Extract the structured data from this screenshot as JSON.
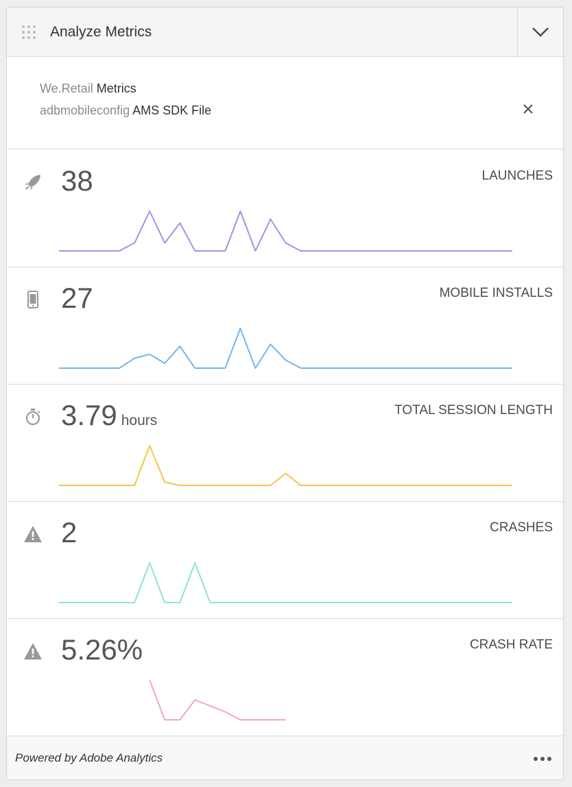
{
  "header": {
    "title": "Analyze Metrics",
    "drag_icon": "grip-dots-icon",
    "collapse_icon": "chevron-down-icon"
  },
  "context": {
    "line1_muted": "We.Retail",
    "line1_strong": "Metrics",
    "line2_muted": "adbmobileconfig",
    "line2_strong": "AMS SDK File",
    "close_icon": "close-icon"
  },
  "metrics": [
    {
      "value": "38",
      "unit": "",
      "label": "LAUNCHES",
      "icon": "rocket-icon",
      "color": "#a98ee8",
      "series": [
        0,
        0,
        0,
        0,
        0,
        0.2,
        1,
        0.2,
        0.7,
        0,
        0,
        0,
        1,
        0,
        0.8,
        0.2,
        0,
        0,
        0,
        0,
        0,
        0,
        0,
        0,
        0,
        0,
        0,
        0,
        0,
        0,
        0
      ]
    },
    {
      "value": "27",
      "unit": "",
      "label": "MOBILE INSTALLS",
      "icon": "phone-icon",
      "color": "#75b4ee",
      "series": [
        0,
        0,
        0,
        0,
        0,
        0.25,
        0.35,
        0.12,
        0.55,
        0,
        0,
        0,
        1,
        0,
        0.6,
        0.2,
        0,
        0,
        0,
        0,
        0,
        0,
        0,
        0,
        0,
        0,
        0,
        0,
        0,
        0,
        0
      ]
    },
    {
      "value": "3.79",
      "unit": "hours",
      "label": "TOTAL SESSION LENGTH",
      "icon": "stopwatch-icon",
      "color": "#f5c443",
      "series": [
        0,
        0,
        0,
        0,
        0,
        0,
        1,
        0.08,
        0,
        0,
        0,
        0,
        0,
        0,
        0,
        0.3,
        0,
        0,
        0,
        0,
        0,
        0,
        0,
        0,
        0,
        0,
        0,
        0,
        0,
        0,
        0
      ]
    },
    {
      "value": "2",
      "unit": "",
      "label": "CRASHES",
      "icon": "alert-icon",
      "color": "#8fe3d3",
      "series": [
        0,
        0,
        0,
        0,
        0,
        0,
        1,
        0,
        0,
        1,
        0,
        0,
        0,
        0,
        0,
        0,
        0,
        0,
        0,
        0,
        0,
        0,
        0,
        0,
        0,
        0,
        0,
        0,
        0,
        0,
        0
      ]
    },
    {
      "value": "5.26%",
      "unit": "",
      "label": "CRASH RATE",
      "icon": "alert-icon",
      "color": "#f3a6c7",
      "series": [
        null,
        null,
        null,
        null,
        null,
        null,
        1,
        0,
        0,
        0.5,
        0.35,
        0.2,
        0,
        0,
        0,
        0,
        null,
        null,
        null,
        null,
        null,
        null,
        null,
        null,
        null,
        null,
        null,
        null,
        null,
        null,
        null
      ]
    }
  ],
  "footer": {
    "powered": "Powered by Adobe Analytics",
    "more_icon": "more-icon"
  }
}
